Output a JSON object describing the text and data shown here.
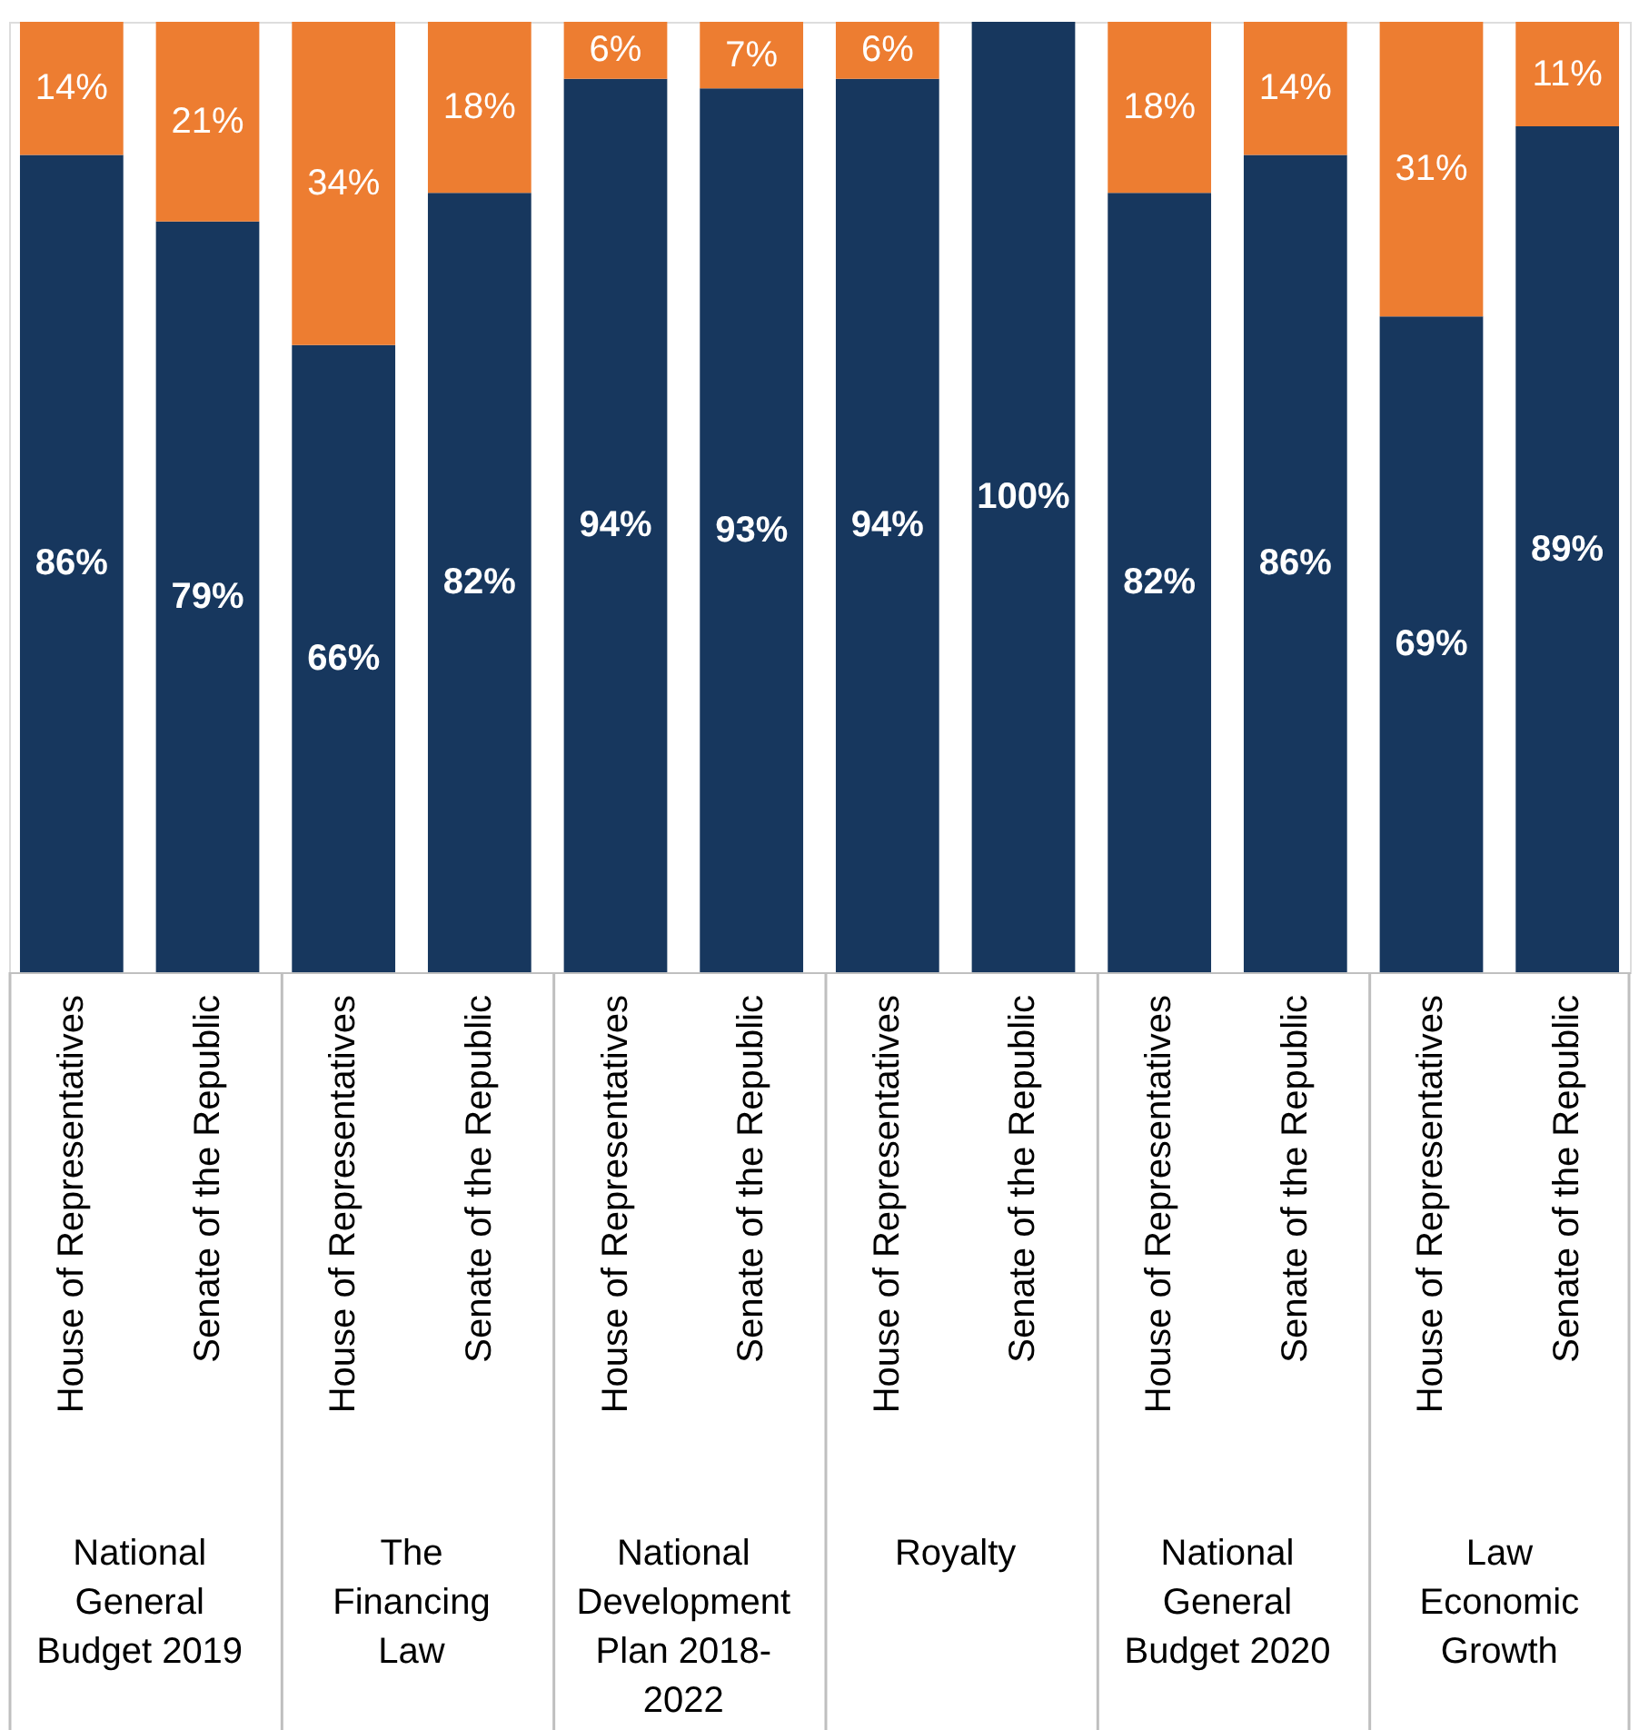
{
  "chart_data": {
    "type": "bar",
    "stacked": true,
    "data_labels": true,
    "tick_labels": "x",
    "categories": [
      "House of Representatives",
      "Senate of the Republic",
      "House of Representatives",
      "Senate of the Republic",
      "House of Representatives",
      "Senate of the Republic",
      "House of Representatives",
      "Senate of the Republic",
      "House of Representatives",
      "Senate of the Republic",
      "House of Representatives",
      "Senate of the Republic"
    ],
    "ylim": [
      0,
      100
    ],
    "series": [
      {
        "color": "#17375e",
        "values": [
          86,
          79,
          66,
          82,
          94,
          93,
          94,
          100,
          82,
          86,
          69,
          89
        ],
        "value_labels": [
          "86%",
          "79%",
          "66%",
          "82%",
          "94%",
          "93%",
          "94%",
          "100%",
          "82%",
          "86%",
          "69%",
          "89%"
        ]
      },
      {
        "color": "#ed7d31",
        "values": [
          14,
          21,
          34,
          18,
          6,
          7,
          6,
          null,
          18,
          14,
          31,
          11
        ],
        "value_labels": [
          "14%",
          "21%",
          "34%",
          "18%",
          "6%",
          "7%",
          "6%",
          null,
          "18%",
          "14%",
          "31%",
          "11%"
        ]
      }
    ],
    "annotations": [
      "National\nGeneral\nBudget 2019",
      "The\nFinancing\nLaw",
      "National\nDevelopment\nPlan 2018-\n2022",
      "Royalty",
      "National\nGeneral\nBudget 2020",
      "Law\nEconomic\nGrowth"
    ]
  }
}
